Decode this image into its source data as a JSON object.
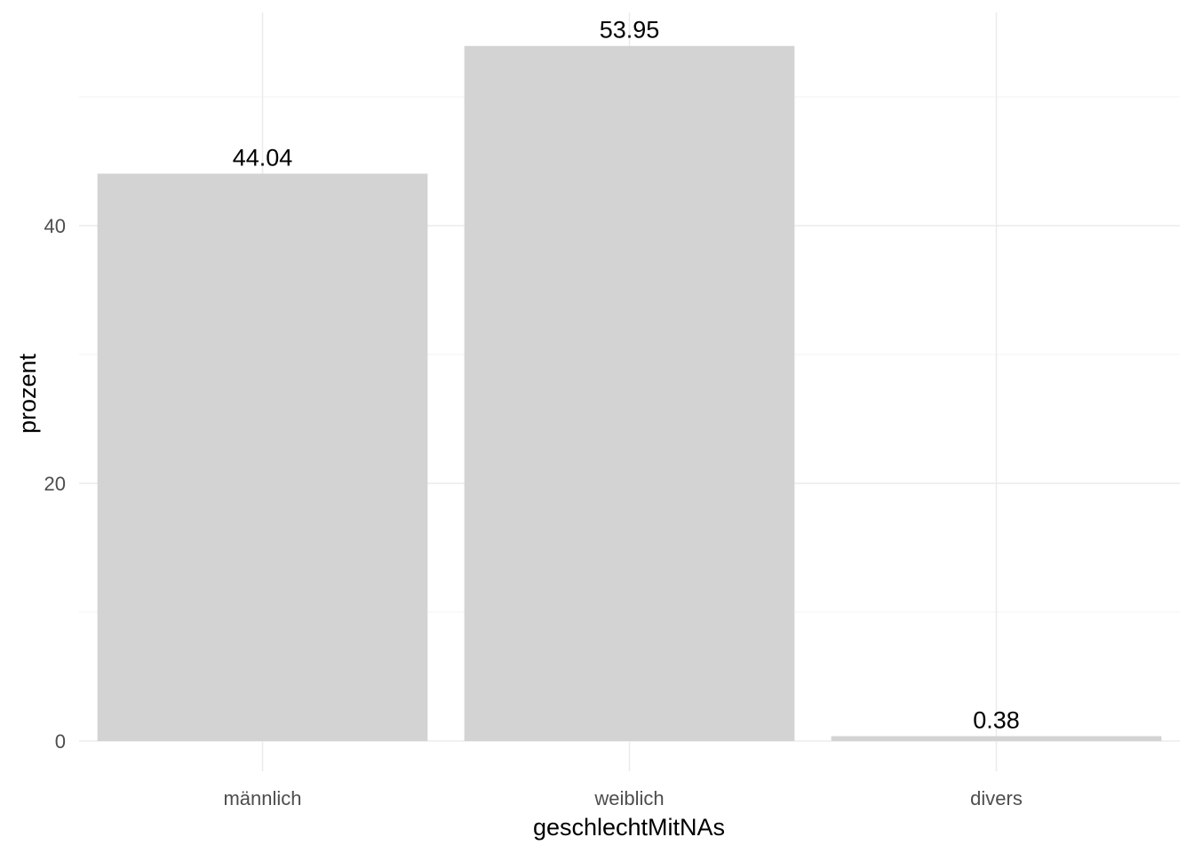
{
  "chart_data": {
    "type": "bar",
    "categories": [
      "männlich",
      "weiblich",
      "divers"
    ],
    "values": [
      44.04,
      53.95,
      0.38
    ],
    "data_labels": [
      "44.04",
      "53.95",
      "0.38"
    ],
    "xlabel": "geschlechtMitNAs",
    "ylabel": "prozent",
    "ylim": [
      0,
      56.6
    ],
    "yticks": [
      0,
      20,
      40
    ],
    "ytick_labels": [
      "0",
      "20",
      "40"
    ],
    "bar_color": "#d3d3d3",
    "grid": true,
    "legend": false
  }
}
